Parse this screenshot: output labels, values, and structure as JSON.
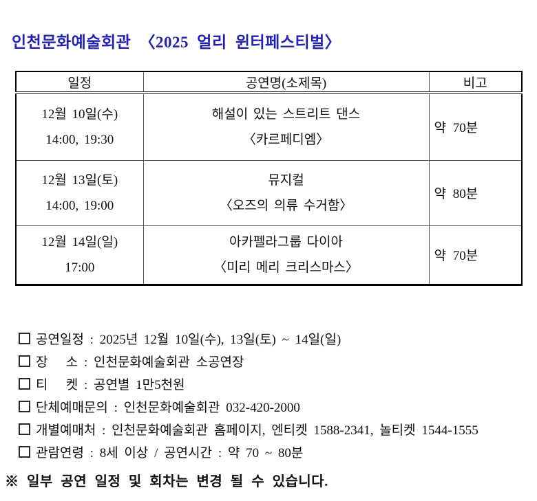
{
  "document": {
    "title": "인천문화예술회관 〈2025 얼리 윈터페스티벌〉",
    "title_color": "#2222b0",
    "border_color": "#000000"
  },
  "table": {
    "headers": [
      "일정",
      "공연명(소제목)",
      "비고"
    ],
    "rows": [
      {
        "date": "12월 10일(수)",
        "times": "14:00, 19:30",
        "name": "해설이 있는 스트리트 댄스",
        "subtitle": "〈카르페디엠〉",
        "note": "약 70분"
      },
      {
        "date": "12월 13일(토)",
        "times": "14:00, 19:00",
        "name": "뮤지컬",
        "subtitle": "〈오즈의 의류 수거함〉",
        "note": "약 80분"
      },
      {
        "date": "12월 14일(일)",
        "times": "17:00",
        "name": "아카펠라그룹 다이아",
        "subtitle": "〈미리 메리 크리스마스〉",
        "note": "약 70분"
      }
    ]
  },
  "details": {
    "items": [
      {
        "text": "공연일정 : 2025년 12월 10일(수), 13일(토) ~ 14일(일)"
      },
      {
        "text": "장   소 : 인천문화예술회관 소공연장"
      },
      {
        "text": "티   켓 : 공연별 1만5천원"
      },
      {
        "text": "단체예매문의 : 인천문화예술회관 032-420-2000"
      },
      {
        "text": "개별예매처 : 인천문화예술회관 홈페이지, 엔티켓 1588-2341, 놀티켓 1544-1555"
      },
      {
        "text": "관람연령 : 8세 이상 / 공연시간 : 약 70 ~ 80분"
      }
    ],
    "footnote": "※ 일부 공연 일정 및 회차는 변경 될 수 있습니다."
  },
  "icons": {
    "bullet": "empty-square"
  }
}
